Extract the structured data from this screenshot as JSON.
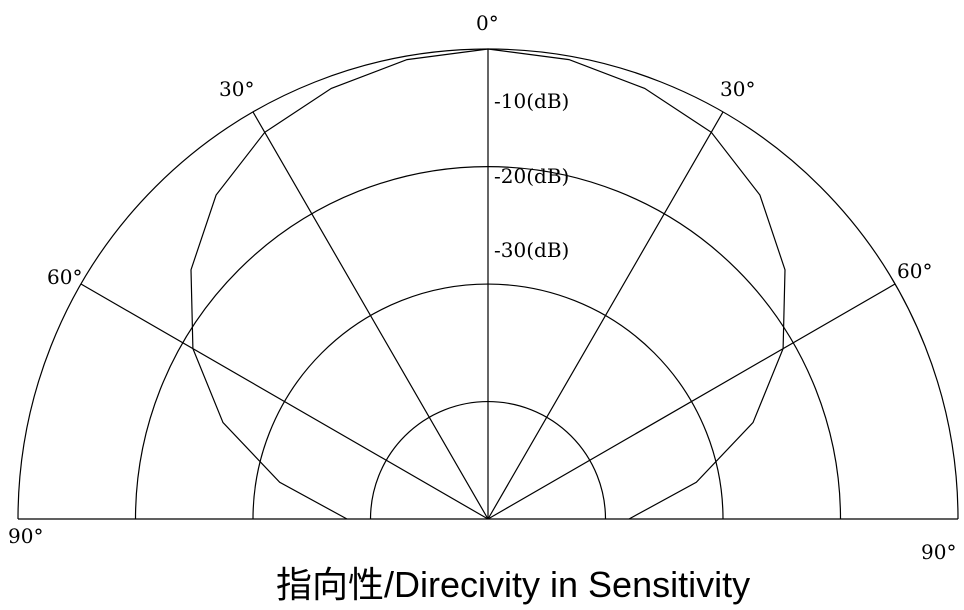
{
  "chart_data": {
    "type": "polar",
    "title": "指向性/Direcivity in  Sensitivity",
    "angle_labels": [
      {
        "text": "0°",
        "angle": 0
      },
      {
        "text": "30°",
        "angle": -30
      },
      {
        "text": "30°",
        "angle": 30
      },
      {
        "text": "60°",
        "angle": -60
      },
      {
        "text": "60°",
        "angle": 60
      },
      {
        "text": "90°",
        "angle": -90
      },
      {
        "text": "90°",
        "angle": 90
      }
    ],
    "radial_labels": [
      "-10(dB)",
      "-20(dB)",
      "-30(dB)"
    ],
    "radial_range_db": [
      -40,
      0
    ],
    "grid_rings_db": [
      0,
      -10,
      -20,
      -30,
      -40
    ],
    "angles_deg": [
      -90,
      -80,
      -70,
      -60,
      -50,
      -40,
      -30,
      -20,
      -10,
      0,
      10,
      20,
      30,
      40,
      50,
      60,
      70,
      80,
      90
    ],
    "series": [
      {
        "values": [
          -28,
          -22,
          -16,
          -11,
          -7,
          -4,
          -2,
          -1,
          -0.3,
          0,
          -0.3,
          -1,
          -2,
          -4,
          -7,
          -11,
          -16,
          -22,
          -28
        ]
      }
    ]
  }
}
